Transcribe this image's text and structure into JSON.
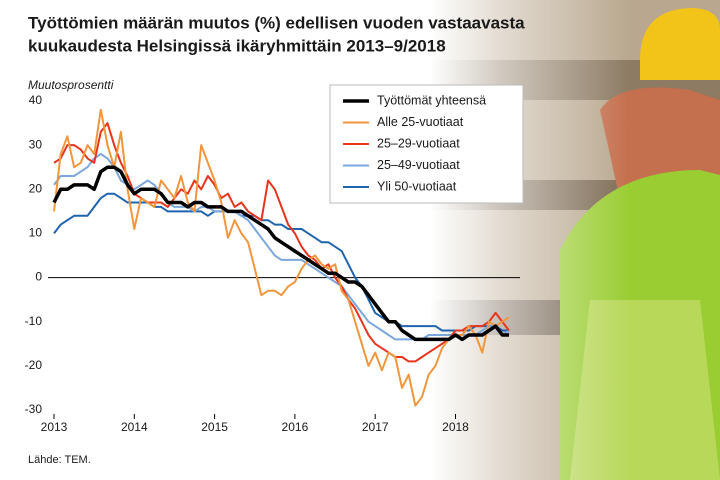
{
  "chart_data": {
    "type": "line",
    "title": [
      "Työttömien määrän muutos (%) edellisen vuoden vastaavasta",
      "kuukaudesta Helsingissä ikäryhmittäin 2013–9/2018"
    ],
    "y_label": "Muutosprosentti",
    "source": "Lähde: TEM.",
    "categories": [
      "2013",
      null,
      null,
      null,
      null,
      null,
      null,
      null,
      null,
      null,
      null,
      null,
      "2014",
      null,
      null,
      null,
      null,
      null,
      null,
      null,
      null,
      null,
      null,
      null,
      "2015",
      null,
      null,
      null,
      null,
      null,
      null,
      null,
      null,
      null,
      null,
      null,
      "2016",
      null,
      null,
      null,
      null,
      null,
      null,
      null,
      null,
      null,
      null,
      null,
      "2017",
      null,
      null,
      null,
      null,
      null,
      null,
      null,
      null,
      null,
      null,
      null,
      "2018",
      null,
      null,
      null,
      null,
      null,
      null,
      null,
      null
    ],
    "ylim": [
      -30,
      40
    ],
    "yticks": [
      -30,
      -20,
      -10,
      0,
      10,
      20,
      30,
      40
    ],
    "grid": false,
    "series": [
      {
        "name": "Työttömät yhteensä",
        "color": "#000000",
        "values": [
          17,
          20,
          20,
          21,
          21,
          21,
          20,
          24,
          25,
          25,
          24,
          21,
          19,
          20,
          20,
          20,
          19,
          17,
          17,
          17,
          16,
          17,
          17,
          16,
          16,
          16,
          15,
          15,
          15,
          14,
          13,
          12,
          11,
          9,
          8,
          7,
          6,
          5,
          4,
          3,
          2,
          1,
          1,
          0,
          -1,
          -1,
          -2,
          -4,
          -6,
          -8,
          -10,
          -10,
          -12,
          -13,
          -14,
          -14,
          -14,
          -14,
          -14,
          -14,
          -13,
          -14,
          -13,
          -13,
          -13,
          -12,
          -11,
          -13,
          -13
        ]
      },
      {
        "name": "Alle 25-vuotiaat",
        "color": "#f0963c",
        "values": [
          15,
          28,
          32,
          25,
          26,
          30,
          28,
          38,
          30,
          25,
          33,
          20,
          11,
          18,
          17,
          16,
          22,
          20,
          18,
          23,
          17,
          15,
          30,
          26,
          22,
          17,
          9,
          13,
          10,
          8,
          2,
          -4,
          -3,
          -3,
          -4,
          -2,
          -1,
          2,
          4,
          5,
          3,
          2,
          3,
          -3,
          -5,
          -10,
          -15,
          -20,
          -17,
          -21,
          -17,
          -18,
          -25,
          -22,
          -29,
          -27,
          -22,
          -20,
          -16,
          -14,
          -13,
          -13,
          -11,
          -13,
          -17,
          -10,
          -11,
          -10,
          -9
        ]
      },
      {
        "name": "25–29-vuotiaat",
        "color": "#e8341c",
        "values": [
          26,
          27,
          30,
          30,
          29,
          27,
          26,
          33,
          35,
          30,
          26,
          23,
          19,
          18,
          17,
          17,
          17,
          16,
          18,
          20,
          19,
          22,
          20,
          23,
          21,
          18,
          19,
          16,
          17,
          15,
          14,
          13,
          22,
          20,
          16,
          12,
          10,
          7,
          5,
          4,
          2,
          3,
          0,
          -2,
          -5,
          -7,
          -10,
          -13,
          -15,
          -16,
          -17,
          -18,
          -18,
          -19,
          -19,
          -18,
          -17,
          -16,
          -15,
          -14,
          -12,
          -12,
          -11,
          -11,
          -11,
          -10,
          -8,
          -10,
          -12
        ]
      },
      {
        "name": "25–49-vuotiaat",
        "color": "#7ba7dc",
        "values": [
          21,
          23,
          23,
          23,
          24,
          25,
          27,
          28,
          27,
          25,
          22,
          21,
          20,
          21,
          22,
          21,
          19,
          17,
          16,
          16,
          16,
          15,
          16,
          16,
          15,
          15,
          15,
          15,
          14,
          13,
          11,
          9,
          7,
          5,
          4,
          4,
          4,
          4,
          3,
          2,
          1,
          0,
          -1,
          -2,
          -4,
          -6,
          -8,
          -10,
          -11,
          -12,
          -13,
          -14,
          -14,
          -14,
          -14,
          -14,
          -13,
          -13,
          -13,
          -13,
          -13,
          -13,
          -13,
          -13,
          -12,
          -11,
          -11,
          -13,
          -12
        ]
      },
      {
        "name": "Yli 50-vuotiaat",
        "color": "#1f64ad",
        "values": [
          10,
          12,
          13,
          14,
          14,
          14,
          16,
          18,
          19,
          19,
          18,
          17,
          17,
          17,
          17,
          16,
          16,
          15,
          15,
          15,
          15,
          15,
          15,
          14,
          15,
          15,
          15,
          15,
          14,
          14,
          14,
          13,
          13,
          12,
          12,
          11,
          11,
          11,
          10,
          9,
          8,
          8,
          7,
          6,
          3,
          0,
          -2,
          -5,
          -8,
          -9,
          -10,
          -10,
          -11,
          -11,
          -11,
          -11,
          -11,
          -11,
          -12,
          -12,
          -12,
          -12,
          -12,
          -11,
          -11,
          -11,
          -11,
          -12,
          -12
        ]
      }
    ]
  }
}
